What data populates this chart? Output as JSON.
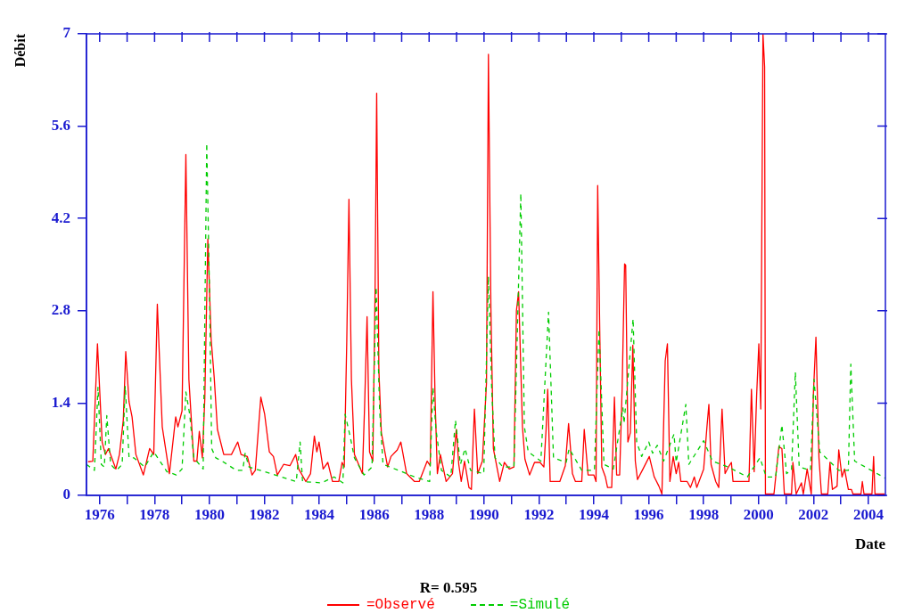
{
  "chart_data": {
    "type": "line",
    "title": "R= 0.595",
    "xlabel": "Date",
    "ylabel": "Débit",
    "xlim": [
      1975.52,
      2004.62
    ],
    "xticks": [
      1976,
      {
        "value": 1977,
        "label": null
      },
      1978,
      {
        "value": 1979,
        "label": null
      },
      1980,
      {
        "value": 1981,
        "label": null
      },
      1982,
      {
        "value": 1983,
        "label": null
      },
      1984,
      {
        "value": 1985,
        "label": null
      },
      1986,
      {
        "value": 1987,
        "label": null
      },
      1988,
      {
        "value": 1989,
        "label": null
      },
      1990,
      {
        "value": 1991,
        "label": null
      },
      1992,
      {
        "value": 1993,
        "label": null
      },
      1994,
      {
        "value": 1995,
        "label": null
      },
      1996,
      {
        "value": 1997,
        "label": null
      },
      1998,
      {
        "value": 1999,
        "label": null
      },
      2000,
      {
        "value": 2001,
        "label": null
      },
      2002,
      {
        "value": 2003,
        "label": null
      },
      2004
    ],
    "ylim": [
      0,
      7
    ],
    "yticks": [
      0,
      1.4,
      2.8,
      4.2,
      5.6,
      7
    ],
    "grid": false,
    "legend": "bottom",
    "marker": "none",
    "series": [
      {
        "name": "=Observé",
        "color": "#ff0000",
        "line_style": "solid",
        "x": [
          1975.58,
          1975.75,
          1975.92,
          1976.09,
          1976.21,
          1976.32,
          1976.44,
          1976.59,
          1976.72,
          1976.86,
          1976.95,
          1977.07,
          1977.18,
          1977.32,
          1977.59,
          1977.82,
          1977.97,
          1978.1,
          1978.28,
          1978.54,
          1978.77,
          1978.85,
          1979.0,
          1979.14,
          1979.25,
          1979.43,
          1979.54,
          1979.63,
          1979.74,
          1979.83,
          1979.94,
          1980.06,
          1980.17,
          1980.29,
          1980.52,
          1980.8,
          1981.03,
          1981.15,
          1981.38,
          1981.55,
          1981.67,
          1981.87,
          1982.01,
          1982.18,
          1982.33,
          1982.47,
          1982.7,
          1982.93,
          1983.14,
          1983.25,
          1983.51,
          1983.68,
          1983.82,
          1983.91,
          1983.99,
          1984.14,
          1984.31,
          1984.48,
          1984.71,
          1984.83,
          1984.91,
          1985.0,
          1985.08,
          1985.17,
          1985.28,
          1985.57,
          1985.65,
          1985.74,
          1985.83,
          1985.95,
          1986.03,
          1986.09,
          1986.17,
          1986.26,
          1986.49,
          1986.61,
          1986.84,
          1986.97,
          1987.18,
          1987.47,
          1987.64,
          1987.93,
          1988.04,
          1988.14,
          1988.22,
          1988.3,
          1988.41,
          1988.62,
          1988.85,
          1988.99,
          1989.08,
          1989.17,
          1989.29,
          1989.45,
          1989.54,
          1989.65,
          1989.77,
          1989.94,
          1990.09,
          1990.16,
          1990.25,
          1990.34,
          1990.57,
          1990.74,
          1990.92,
          1991.09,
          1991.18,
          1991.26,
          1991.4,
          1991.49,
          1991.66,
          1991.84,
          1992.04,
          1992.18,
          1992.26,
          1992.32,
          1992.41,
          1992.76,
          1992.96,
          1993.08,
          1993.22,
          1993.33,
          1993.56,
          1993.65,
          1993.79,
          1994.0,
          1994.08,
          1994.14,
          1994.22,
          1994.29,
          1994.42,
          1994.5,
          1994.65,
          1994.75,
          1994.83,
          1994.94,
          1995.03,
          1995.12,
          1995.16,
          1995.24,
          1995.33,
          1995.42,
          1995.51,
          1995.59,
          1995.79,
          1996.02,
          1996.2,
          1996.37,
          1996.48,
          1996.6,
          1996.68,
          1996.77,
          1996.89,
          1997.0,
          1997.09,
          1997.17,
          1997.4,
          1997.52,
          1997.66,
          1997.75,
          1998.0,
          1998.12,
          1998.19,
          1998.27,
          1998.44,
          1998.55,
          1998.67,
          1998.78,
          1998.9,
          1999.01,
          1999.07,
          1999.65,
          1999.74,
          1999.84,
          1999.93,
          2000.01,
          2000.08,
          2000.16,
          2000.22,
          2000.25,
          2000.56,
          2000.74,
          2000.85,
          2000.94,
          2001.2,
          2001.25,
          2001.37,
          2001.56,
          2001.63,
          2001.77,
          2001.92,
          2002.0,
          2002.09,
          2002.2,
          2002.29,
          2002.52,
          2002.6,
          2002.69,
          2002.86,
          2002.92,
          2003.04,
          2003.13,
          2003.27,
          2003.38,
          2003.44,
          2003.73,
          2003.78,
          2003.84,
          2004.13,
          2004.19,
          2004.24,
          2004.59
        ],
        "values": [
          0.51,
          0.52,
          2.3,
          0.81,
          0.62,
          0.71,
          0.57,
          0.4,
          0.62,
          1.14,
          2.18,
          1.42,
          1.19,
          0.62,
          0.31,
          0.71,
          0.62,
          2.9,
          1.04,
          0.33,
          1.19,
          1.04,
          1.28,
          5.17,
          1.76,
          0.52,
          0.52,
          0.97,
          0.57,
          1.47,
          3.89,
          2.37,
          1.8,
          1.0,
          0.62,
          0.62,
          0.81,
          0.62,
          0.59,
          0.31,
          0.38,
          1.49,
          1.23,
          0.66,
          0.59,
          0.31,
          0.47,
          0.45,
          0.62,
          0.4,
          0.21,
          0.33,
          0.9,
          0.66,
          0.81,
          0.4,
          0.5,
          0.21,
          0.21,
          0.5,
          0.43,
          2.33,
          4.49,
          1.76,
          0.62,
          0.33,
          1.35,
          2.71,
          0.66,
          0.52,
          3.04,
          6.1,
          1.9,
          0.95,
          0.43,
          0.59,
          0.69,
          0.81,
          0.33,
          0.21,
          0.21,
          0.52,
          0.45,
          3.09,
          1.42,
          0.33,
          0.62,
          0.21,
          0.33,
          1.0,
          0.47,
          0.21,
          0.52,
          0.12,
          0.09,
          1.31,
          0.33,
          0.52,
          1.71,
          6.69,
          2.85,
          0.71,
          0.21,
          0.5,
          0.4,
          0.43,
          2.8,
          3.09,
          1.04,
          0.55,
          0.31,
          0.5,
          0.5,
          0.43,
          1.0,
          1.61,
          0.21,
          0.21,
          0.45,
          1.09,
          0.33,
          0.21,
          0.21,
          1.0,
          0.31,
          0.31,
          0.21,
          4.7,
          2.37,
          0.43,
          0.28,
          0.12,
          0.12,
          1.49,
          0.31,
          0.31,
          1.61,
          3.51,
          3.49,
          0.81,
          0.95,
          2.28,
          0.52,
          0.24,
          0.4,
          0.59,
          0.28,
          0.14,
          0.02,
          2.04,
          2.3,
          0.21,
          0.59,
          0.33,
          0.5,
          0.21,
          0.21,
          0.12,
          0.28,
          0.12,
          0.4,
          1.04,
          1.38,
          0.47,
          0.21,
          0.12,
          1.31,
          0.33,
          0.43,
          0.5,
          0.21,
          0.21,
          1.61,
          0.36,
          1.52,
          2.3,
          1.31,
          7.0,
          6.5,
          0.02,
          0.02,
          0.74,
          0.71,
          0.02,
          0.02,
          0.5,
          0.02,
          0.19,
          0.02,
          0.4,
          0.02,
          1.57,
          2.4,
          0.57,
          0.02,
          0.02,
          0.5,
          0.09,
          0.14,
          0.69,
          0.28,
          0.4,
          0.09,
          0.09,
          0.02,
          0.02,
          0.21,
          0.02,
          0.02,
          0.59,
          0.02,
          0.02
        ]
      },
      {
        "name": "=Simulé",
        "color": "#00cc00",
        "line_style": "dashed",
        "x": [
          1975.52,
          1975.81,
          1975.94,
          1976.06,
          1976.17,
          1976.26,
          1976.4,
          1976.61,
          1976.82,
          1976.93,
          1977.07,
          1977.24,
          1977.64,
          1977.97,
          1978.45,
          1978.79,
          1979.0,
          1979.14,
          1979.28,
          1979.43,
          1979.77,
          1979.9,
          1980.0,
          1980.08,
          1980.23,
          1980.46,
          1980.98,
          1981.21,
          1981.3,
          1981.44,
          1982.24,
          1983.16,
          1983.3,
          1983.39,
          1984.08,
          1984.54,
          1984.86,
          1984.94,
          1985.12,
          1985.28,
          1985.63,
          1985.92,
          1986.07,
          1986.2,
          1986.32,
          1986.89,
          1987.47,
          1988.02,
          1988.14,
          1988.25,
          1988.45,
          1988.79,
          1988.96,
          1989.14,
          1989.31,
          1989.51,
          1989.99,
          1990.16,
          1990.28,
          1990.4,
          1990.69,
          1991.09,
          1991.34,
          1991.47,
          1991.61,
          1992.07,
          1992.35,
          1992.53,
          1992.99,
          1993.1,
          1993.56,
          1994.02,
          1994.19,
          1994.37,
          1994.71,
          1995.06,
          1995.1,
          1995.43,
          1995.56,
          1995.74,
          1996.0,
          1996.14,
          1996.31,
          1996.54,
          1996.92,
          1997.0,
          1997.35,
          1997.46,
          1998.0,
          1998.32,
          1998.9,
          1999.59,
          2000.05,
          2000.28,
          2000.62,
          2000.85,
          2001.02,
          2001.2,
          2001.34,
          2001.48,
          2001.89,
          2002.02,
          2002.23,
          2002.92,
          2003.27,
          2003.36,
          2003.5,
          2004.62
        ],
        "values": [
          0.47,
          0.38,
          1.64,
          0.47,
          0.43,
          1.21,
          0.47,
          0.38,
          0.47,
          1.66,
          0.57,
          0.57,
          0.43,
          0.66,
          0.36,
          0.31,
          0.4,
          1.57,
          1.23,
          0.57,
          0.4,
          5.34,
          3.09,
          0.71,
          0.57,
          0.52,
          0.38,
          0.38,
          0.64,
          0.43,
          0.33,
          0.21,
          0.81,
          0.21,
          0.19,
          0.28,
          0.19,
          1.23,
          0.9,
          0.57,
          0.31,
          0.43,
          3.16,
          1.28,
          0.47,
          0.38,
          0.28,
          0.21,
          1.64,
          1.0,
          0.38,
          0.28,
          1.14,
          0.47,
          0.71,
          0.38,
          0.33,
          3.32,
          1.61,
          0.57,
          0.43,
          0.43,
          4.58,
          1.04,
          0.66,
          0.52,
          2.78,
          0.57,
          0.5,
          0.71,
          0.38,
          0.38,
          2.52,
          0.47,
          0.4,
          1.33,
          1.09,
          2.68,
          0.81,
          0.59,
          0.81,
          0.64,
          0.76,
          0.52,
          0.93,
          0.5,
          1.38,
          0.47,
          0.83,
          0.52,
          0.43,
          0.28,
          0.57,
          0.28,
          0.28,
          1.07,
          0.33,
          0.38,
          1.87,
          0.43,
          0.38,
          1.76,
          0.66,
          0.38,
          0.38,
          1.99,
          0.52,
          0.26
        ]
      }
    ]
  }
}
